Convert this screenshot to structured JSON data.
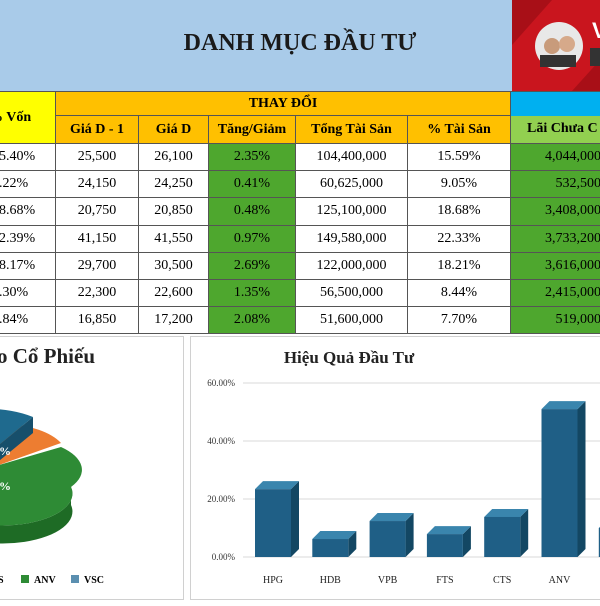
{
  "header": {
    "title": "DANH MỤC ĐẦU TƯ",
    "photo_text": "V"
  },
  "table": {
    "corner": "% Vốn",
    "group": "THAY ĐỔI",
    "last_header": "Lãi Chưa C",
    "columns": [
      "Giá D - 1",
      "Giá D",
      "Tăng/Giảm",
      "Tổng Tài Sản",
      "% Tài Sản"
    ],
    "rows": [
      [
        "5.40%",
        "25,500",
        "26,100",
        "2.35%",
        "104,400,000",
        "15.59%",
        "4,044,000"
      ],
      [
        ".22%",
        "24,150",
        "24,250",
        "0.41%",
        "60,625,000",
        "9.05%",
        "532,500"
      ],
      [
        "8.68%",
        "20,750",
        "20,850",
        "0.48%",
        "125,100,000",
        "18.68%",
        "3,408,000"
      ],
      [
        "2.39%",
        "41,150",
        "41,550",
        "0.97%",
        "149,580,000",
        "22.33%",
        "3,733,200"
      ],
      [
        "8.17%",
        "29,700",
        "30,500",
        "2.69%",
        "122,000,000",
        "18.21%",
        "3,616,000"
      ],
      [
        ".30%",
        "22,300",
        "22,600",
        "1.35%",
        "56,500,000",
        "8.44%",
        "2,415,000"
      ],
      [
        ".84%",
        "16,850",
        "17,200",
        "2.08%",
        "51,600,000",
        "7.70%",
        "519,000"
      ]
    ]
  },
  "pie": {
    "title": "o Cổ Phiếu",
    "slice_labels": [
      "%",
      "%"
    ],
    "legend": [
      "S",
      "ANV",
      "VSC"
    ]
  },
  "chart_data": {
    "type": "bar",
    "title": "Hiệu Quả  Đầu Tư",
    "categories": [
      "HPG",
      "HDB",
      "VPB",
      "FTS",
      "CTS",
      "ANV",
      null
    ],
    "values": [
      23.4,
      6.2,
      12.4,
      7.9,
      13.8,
      51,
      10
    ],
    "color": "#1f5f86",
    "ylim": [
      0,
      60
    ],
    "yticks": [
      {
        "value": 0,
        "label": "0.00%"
      },
      {
        "value": 20,
        "label": "20.00%"
      },
      {
        "value": 40,
        "label": "40.00%"
      },
      {
        "value": 60,
        "label": "60.00%"
      }
    ],
    "grid": true
  }
}
